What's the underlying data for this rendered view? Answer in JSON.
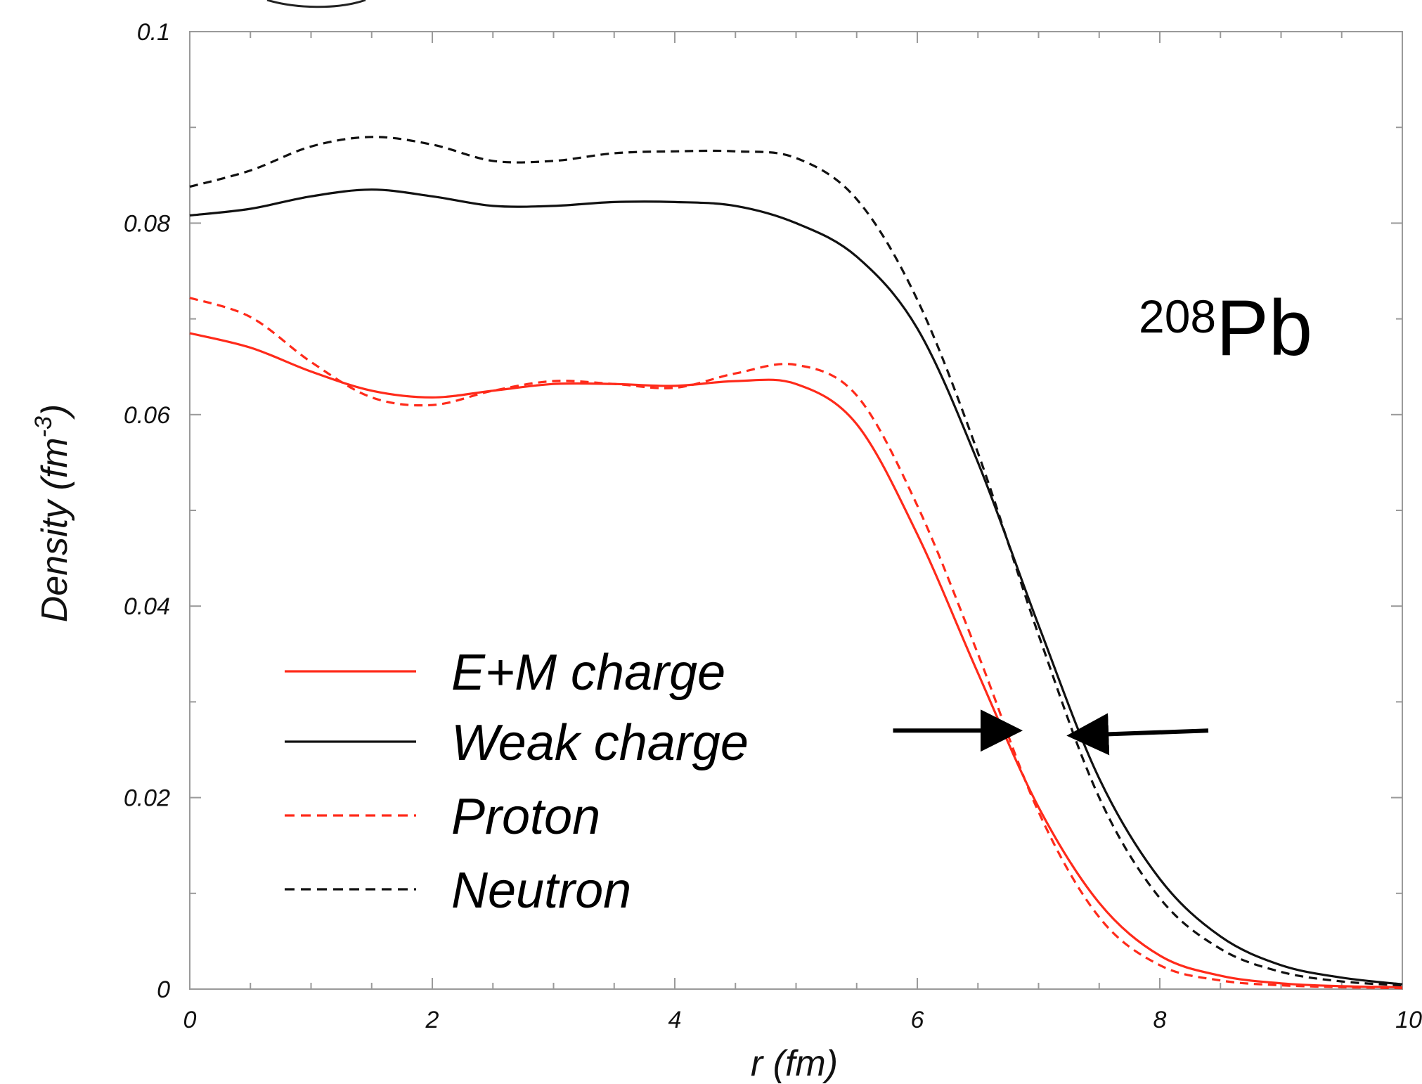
{
  "chart_data": {
    "type": "line",
    "title": "",
    "xlabel": "r (fm)",
    "ylabel": "Density (fm",
    "ylabel_exponent": "-3",
    "ylabel_close": ")",
    "annotation": {
      "mass_number": "208",
      "element": "Pb"
    },
    "xlim": [
      0,
      10
    ],
    "ylim": [
      0,
      0.1
    ],
    "x_ticks": [
      "0",
      "2",
      "4",
      "6",
      "8",
      "10"
    ],
    "y_ticks": [
      "0",
      "0.02",
      "0.04",
      "0.06",
      "0.08",
      "0.1"
    ],
    "legend_position": "lower-left",
    "series": [
      {
        "name": "E+M charge",
        "color": "#ff2a1a",
        "style": "solid",
        "x": [
          0,
          0.5,
          1,
          1.5,
          2,
          2.5,
          3,
          3.5,
          4,
          4.5,
          5,
          5.5,
          6,
          6.5,
          7,
          7.5,
          8,
          8.5,
          9,
          9.5,
          10
        ],
        "y": [
          0.0685,
          0.067,
          0.0645,
          0.0625,
          0.0618,
          0.0625,
          0.0632,
          0.0632,
          0.063,
          0.0635,
          0.0632,
          0.059,
          0.0475,
          0.033,
          0.019,
          0.009,
          0.0035,
          0.0014,
          0.0006,
          0.0003,
          0.0002
        ]
      },
      {
        "name": "Weak charge",
        "color": "#111111",
        "style": "solid",
        "x": [
          0,
          0.5,
          1,
          1.5,
          2,
          2.5,
          3,
          3.5,
          4,
          4.5,
          5,
          5.5,
          6,
          6.5,
          7,
          7.5,
          8,
          8.5,
          9,
          9.5,
          10
        ],
        "y": [
          0.0808,
          0.0815,
          0.0828,
          0.0835,
          0.0828,
          0.0818,
          0.0818,
          0.0822,
          0.0822,
          0.0818,
          0.08,
          0.0765,
          0.069,
          0.055,
          0.038,
          0.022,
          0.0115,
          0.0055,
          0.0025,
          0.0012,
          0.0005
        ]
      },
      {
        "name": "Proton",
        "color": "#ff2a1a",
        "style": "dashed",
        "x": [
          0,
          0.5,
          1,
          1.5,
          2,
          2.5,
          3,
          3.5,
          4,
          4.5,
          5,
          5.5,
          6,
          6.5,
          7,
          7.5,
          8,
          8.5,
          9,
          9.5,
          10
        ],
        "y": [
          0.0722,
          0.0702,
          0.0655,
          0.0618,
          0.061,
          0.0625,
          0.0635,
          0.0632,
          0.0628,
          0.0643,
          0.0652,
          0.062,
          0.0505,
          0.035,
          0.0185,
          0.0075,
          0.0025,
          0.0009,
          0.0004,
          0.0002,
          0.0001
        ]
      },
      {
        "name": "Neutron",
        "color": "#111111",
        "style": "dashed",
        "x": [
          0,
          0.5,
          1,
          1.5,
          2,
          2.5,
          3,
          3.5,
          4,
          4.5,
          5,
          5.5,
          6,
          6.5,
          7,
          7.5,
          8,
          8.5,
          9,
          9.5,
          10
        ],
        "y": [
          0.0838,
          0.0855,
          0.088,
          0.089,
          0.0882,
          0.0865,
          0.0865,
          0.0873,
          0.0875,
          0.0875,
          0.0868,
          0.0825,
          0.072,
          0.056,
          0.037,
          0.02,
          0.0095,
          0.0042,
          0.0018,
          0.0008,
          0.0004
        ]
      }
    ],
    "arrows": [
      {
        "from": [
          5.8,
          0.027
        ],
        "to": [
          6.8,
          0.027
        ],
        "color": "#000000"
      },
      {
        "from": [
          8.4,
          0.027
        ],
        "to": [
          7.3,
          0.0265
        ],
        "color": "#000000"
      }
    ]
  }
}
